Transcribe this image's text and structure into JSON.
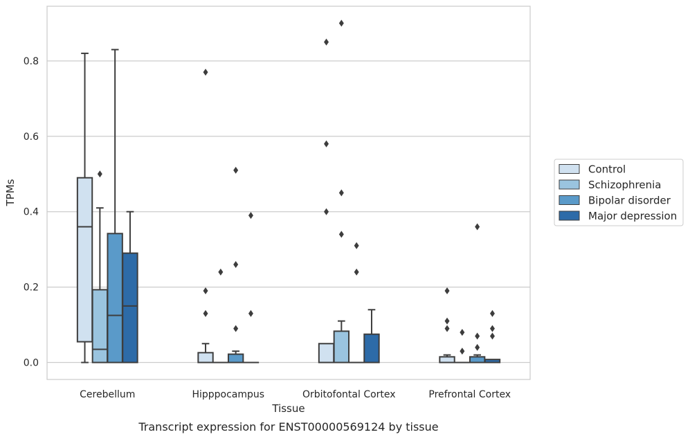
{
  "chart_data": {
    "type": "box",
    "caption": "Transcript expression for ENST00000569124 by tissue",
    "xlabel": "Tissue",
    "ylabel": "TPMs",
    "ylim": [
      -0.045,
      0.945
    ],
    "yticks": [
      0.0,
      0.2,
      0.4,
      0.6,
      0.8
    ],
    "ytick_labels": [
      "0.0",
      "0.2",
      "0.4",
      "0.6",
      "0.8"
    ],
    "grid": "horizontal",
    "legend_position": "right",
    "categories": [
      "Cerebellum",
      "Hipppocampus",
      "Orbitofontal Cortex",
      "Prefrontal Cortex"
    ],
    "series": [
      {
        "name": "Control",
        "color": "#d0e1f0",
        "boxes": [
          {
            "whislo": 0.0,
            "q1": 0.055,
            "med": 0.36,
            "q3": 0.49,
            "whishi": 0.82,
            "fliers": []
          },
          {
            "whislo": 0.0,
            "q1": 0.0,
            "med": 0.0,
            "q3": 0.026,
            "whishi": 0.05,
            "fliers": [
              0.77,
              0.19,
              0.13
            ]
          },
          {
            "whislo": 0.0,
            "q1": 0.0,
            "med": 0.0,
            "q3": 0.05,
            "whishi": 0.05,
            "fliers": [
              0.85,
              0.58,
              0.4
            ]
          },
          {
            "whislo": 0.0,
            "q1": 0.0,
            "med": 0.0,
            "q3": 0.015,
            "whishi": 0.02,
            "fliers": [
              0.19,
              0.11,
              0.09
            ]
          }
        ]
      },
      {
        "name": "Schizophrenia",
        "color": "#9ac4df",
        "boxes": [
          {
            "whislo": 0.0,
            "q1": 0.0,
            "med": 0.035,
            "q3": 0.193,
            "whishi": 0.41,
            "fliers": [
              0.5
            ]
          },
          {
            "whislo": 0.0,
            "q1": 0.0,
            "med": 0.0,
            "q3": 0.0,
            "whishi": 0.0,
            "fliers": [
              0.24
            ]
          },
          {
            "whislo": 0.0,
            "q1": 0.0,
            "med": 0.0,
            "q3": 0.083,
            "whishi": 0.11,
            "fliers": [
              0.9,
              0.45,
              0.34
            ]
          },
          {
            "whislo": 0.0,
            "q1": 0.0,
            "med": 0.0,
            "q3": 0.0,
            "whishi": 0.0,
            "fliers": [
              0.08,
              0.03
            ]
          }
        ]
      },
      {
        "name": "Bipolar disorder",
        "color": "#5a9ac9",
        "boxes": [
          {
            "whislo": 0.0,
            "q1": 0.0,
            "med": 0.125,
            "q3": 0.342,
            "whishi": 0.83,
            "fliers": []
          },
          {
            "whislo": 0.0,
            "q1": 0.0,
            "med": 0.0,
            "q3": 0.022,
            "whishi": 0.03,
            "fliers": [
              0.51,
              0.26,
              0.09
            ]
          },
          {
            "whislo": 0.0,
            "q1": 0.0,
            "med": 0.0,
            "q3": 0.0,
            "whishi": 0.0,
            "fliers": [
              0.31,
              0.24
            ]
          },
          {
            "whislo": 0.0,
            "q1": 0.0,
            "med": 0.0,
            "q3": 0.015,
            "whishi": 0.02,
            "fliers": [
              0.36,
              0.07,
              0.04
            ]
          }
        ]
      },
      {
        "name": "Major depression",
        "color": "#2d6ba8",
        "boxes": [
          {
            "whislo": 0.0,
            "q1": 0.0,
            "med": 0.15,
            "q3": 0.29,
            "whishi": 0.4,
            "fliers": []
          },
          {
            "whislo": 0.0,
            "q1": 0.0,
            "med": 0.0,
            "q3": 0.0,
            "whishi": 0.0,
            "fliers": [
              0.39,
              0.13
            ]
          },
          {
            "whislo": 0.0,
            "q1": 0.0,
            "med": 0.0,
            "q3": 0.075,
            "whishi": 0.14,
            "fliers": []
          },
          {
            "whislo": 0.0,
            "q1": 0.0,
            "med": 0.0,
            "q3": 0.008,
            "whishi": 0.008,
            "fliers": [
              0.13,
              0.09,
              0.07
            ]
          }
        ]
      }
    ]
  }
}
